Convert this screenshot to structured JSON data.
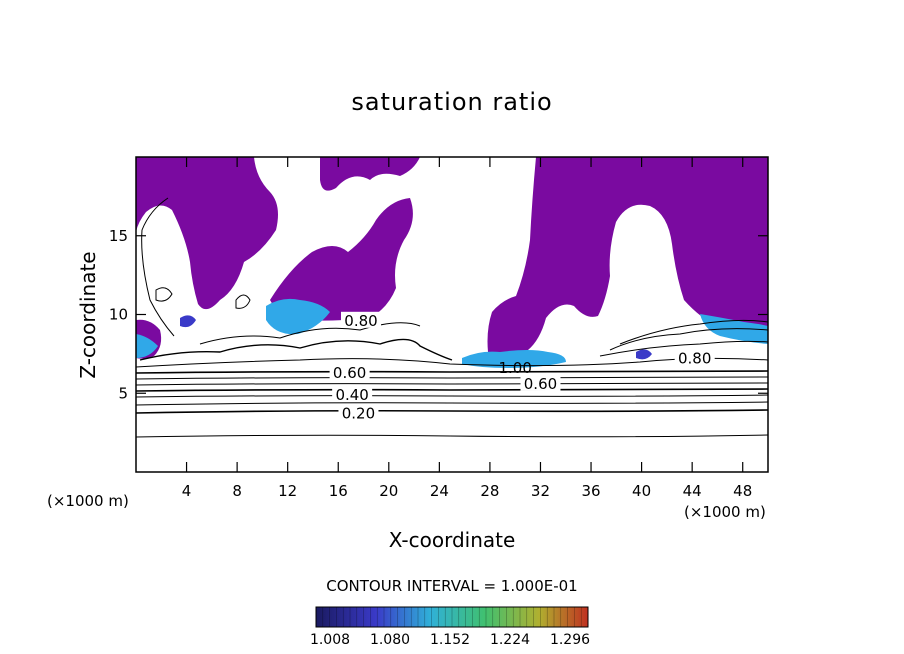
{
  "chart_data": {
    "type": "heatmap",
    "title": "saturation ratio",
    "xlabel": "X-coordinate",
    "ylabel": "Z-coordinate",
    "x_unit_left": "(×1000 m)",
    "x_unit_right": "(×1000 m)",
    "xlim": [
      0,
      50
    ],
    "ylim": [
      0,
      20
    ],
    "x_ticks": [
      "4",
      "8",
      "12",
      "16",
      "20",
      "24",
      "28",
      "32",
      "36",
      "40",
      "44",
      "48"
    ],
    "y_ticks": [
      "5",
      "10",
      "15"
    ],
    "contour_interval_label": "CONTOUR INTERVAL = 1.000E-01",
    "contour_labels": [
      {
        "text": "0.20",
        "x": 17.6,
        "z": 3.7
      },
      {
        "text": "0.40",
        "x": 17.1,
        "z": 4.9
      },
      {
        "text": "0.60",
        "x": 16.9,
        "z": 6.3
      },
      {
        "text": "0.60",
        "x": 32.0,
        "z": 5.6
      },
      {
        "text": "0.80",
        "x": 17.8,
        "z": 9.6
      },
      {
        "text": "0.80",
        "x": 44.2,
        "z": 7.2
      },
      {
        "text": "1.00",
        "x": 30.0,
        "z": 6.6
      }
    ],
    "colorbar": {
      "ticks": [
        "1.008",
        "1.080",
        "1.152",
        "1.224",
        "1.296"
      ],
      "colors": [
        "#1a1a60",
        "#3a3ac8",
        "#30b0d8",
        "#40c070",
        "#b0b030",
        "#c03020"
      ]
    },
    "supersaturated_color": "#7a0aa0",
    "high_value_color": "#30a8e8"
  }
}
